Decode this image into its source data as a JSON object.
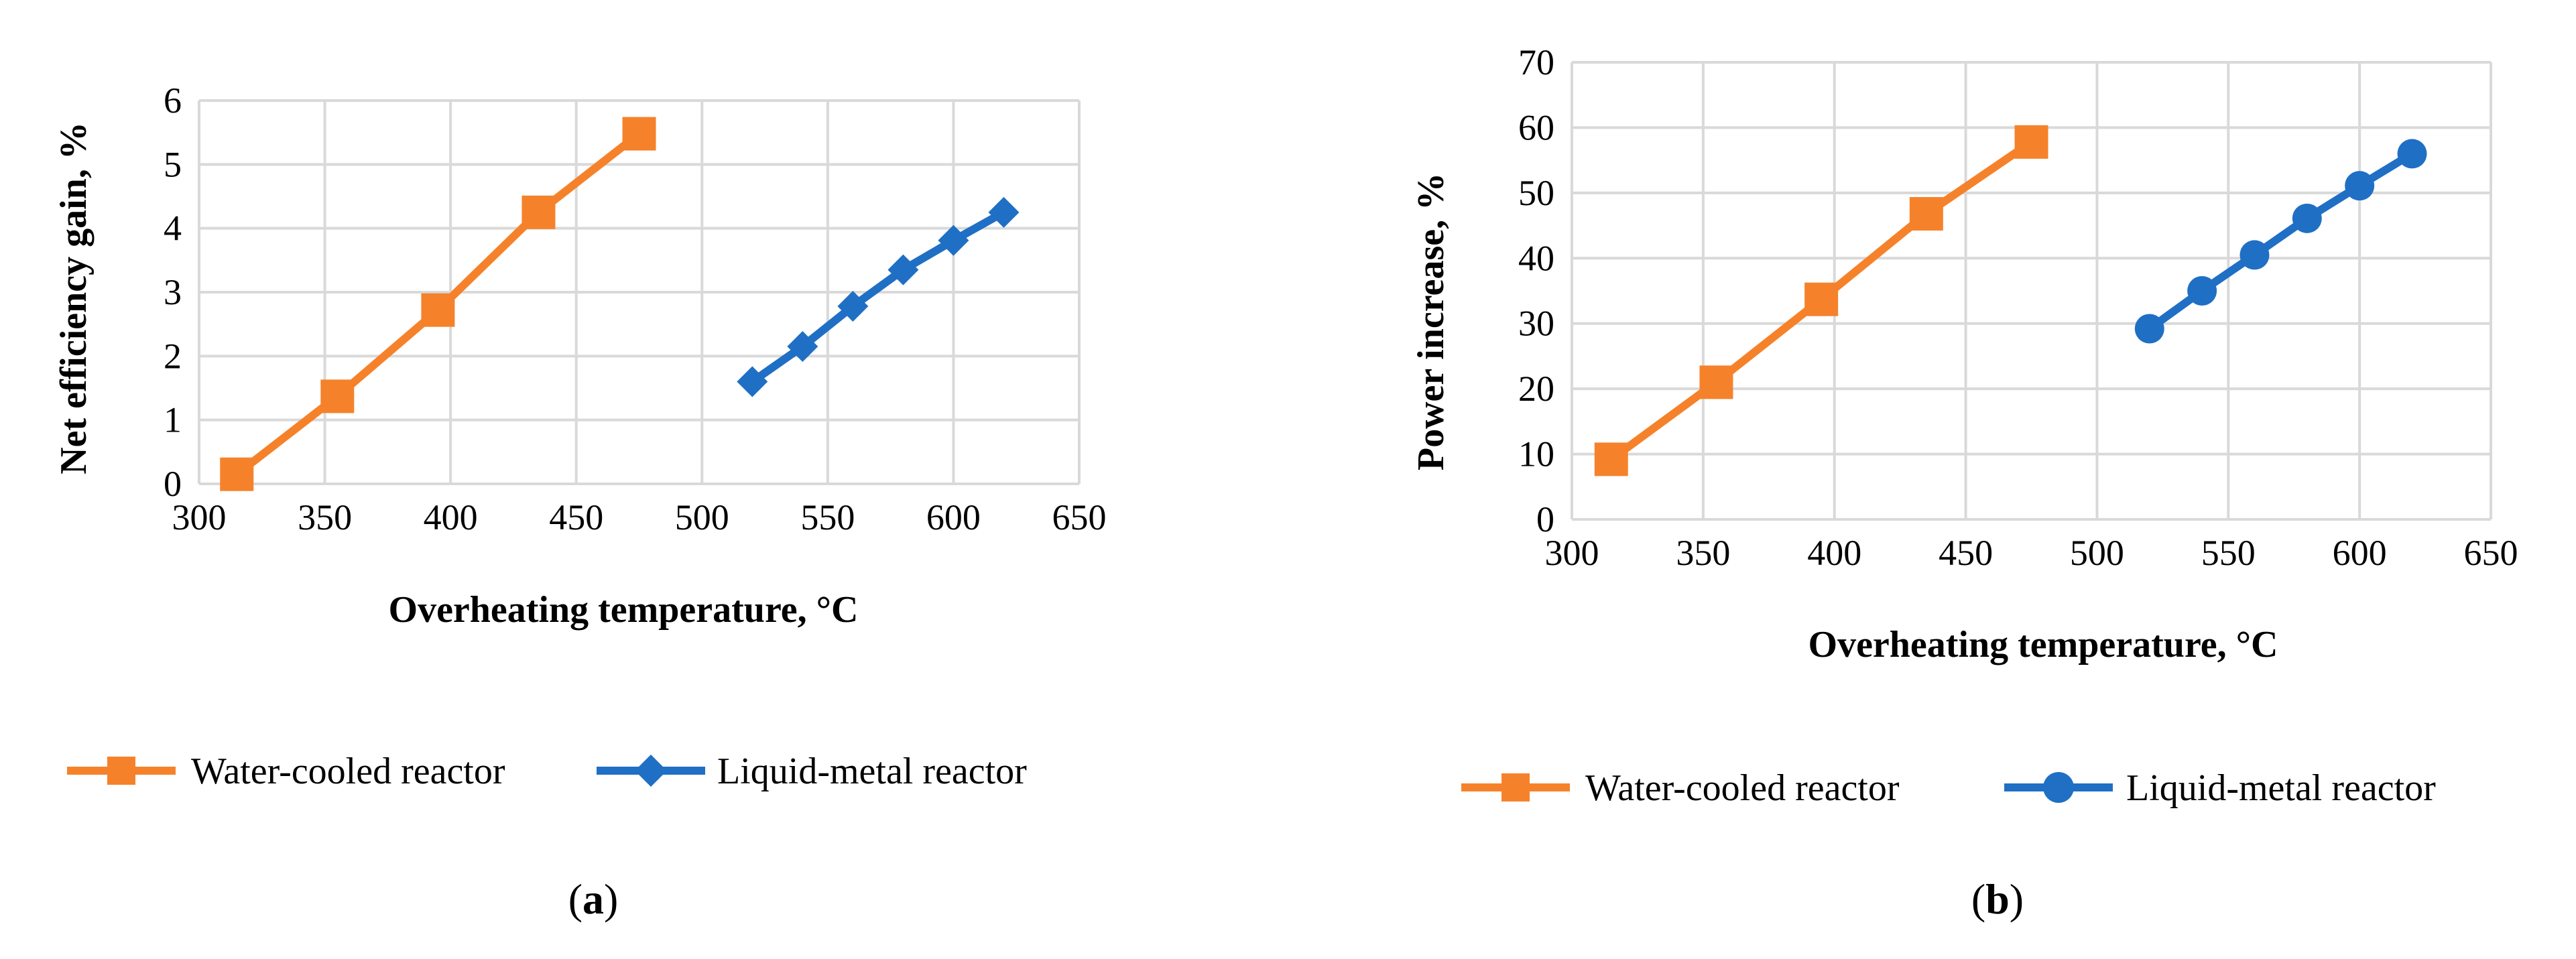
{
  "colors": {
    "water": "#f5822a",
    "metal": "#1f6fc5",
    "grid": "#d9d9d9"
  },
  "panels": [
    {
      "label": "a",
      "chart_data": {
        "type": "line",
        "title": "",
        "xlabel": "Overheating temperature, °C",
        "ylabel": "Net efficiency gain, %",
        "xlim": [
          300,
          650
        ],
        "ylim": [
          0,
          6
        ],
        "xticks": [
          300,
          350,
          400,
          450,
          500,
          550,
          600,
          650
        ],
        "yticks": [
          0,
          1,
          2,
          3,
          4,
          5,
          6
        ],
        "grid": true,
        "legend_position": "bottom",
        "series": [
          {
            "name": "Water-cooled reactor",
            "marker": "square",
            "x": [
              315,
              355,
              395,
              435,
              475
            ],
            "y": [
              0.15,
              1.37,
              2.72,
              4.25,
              5.48
            ]
          },
          {
            "name": "Liquid-metal reactor",
            "marker": "diamond",
            "x": [
              520,
              540,
              560,
              580,
              600,
              620
            ],
            "y": [
              1.6,
              2.15,
              2.78,
              3.35,
              3.81,
              4.25
            ]
          }
        ]
      }
    },
    {
      "label": "b",
      "chart_data": {
        "type": "line",
        "title": "",
        "xlabel": "Overheating temperature, °C",
        "ylabel": "Power increase, %",
        "xlim": [
          300,
          650
        ],
        "ylim": [
          0,
          70
        ],
        "xticks": [
          300,
          350,
          400,
          450,
          500,
          550,
          600,
          650
        ],
        "yticks": [
          0,
          10,
          20,
          30,
          40,
          50,
          60,
          70
        ],
        "grid": true,
        "legend_position": "bottom",
        "series": [
          {
            "name": "Water-cooled reactor",
            "marker": "square",
            "x": [
              315,
              355,
              395,
              435,
              475
            ],
            "y": [
              9.2,
              21.0,
              33.7,
              46.8,
              57.8
            ]
          },
          {
            "name": "Liquid-metal reactor",
            "marker": "circle",
            "x": [
              520,
              540,
              560,
              580,
              600,
              620
            ],
            "y": [
              29.2,
              35.0,
              40.5,
              46.1,
              51.1,
              56.0
            ]
          }
        ]
      }
    }
  ]
}
